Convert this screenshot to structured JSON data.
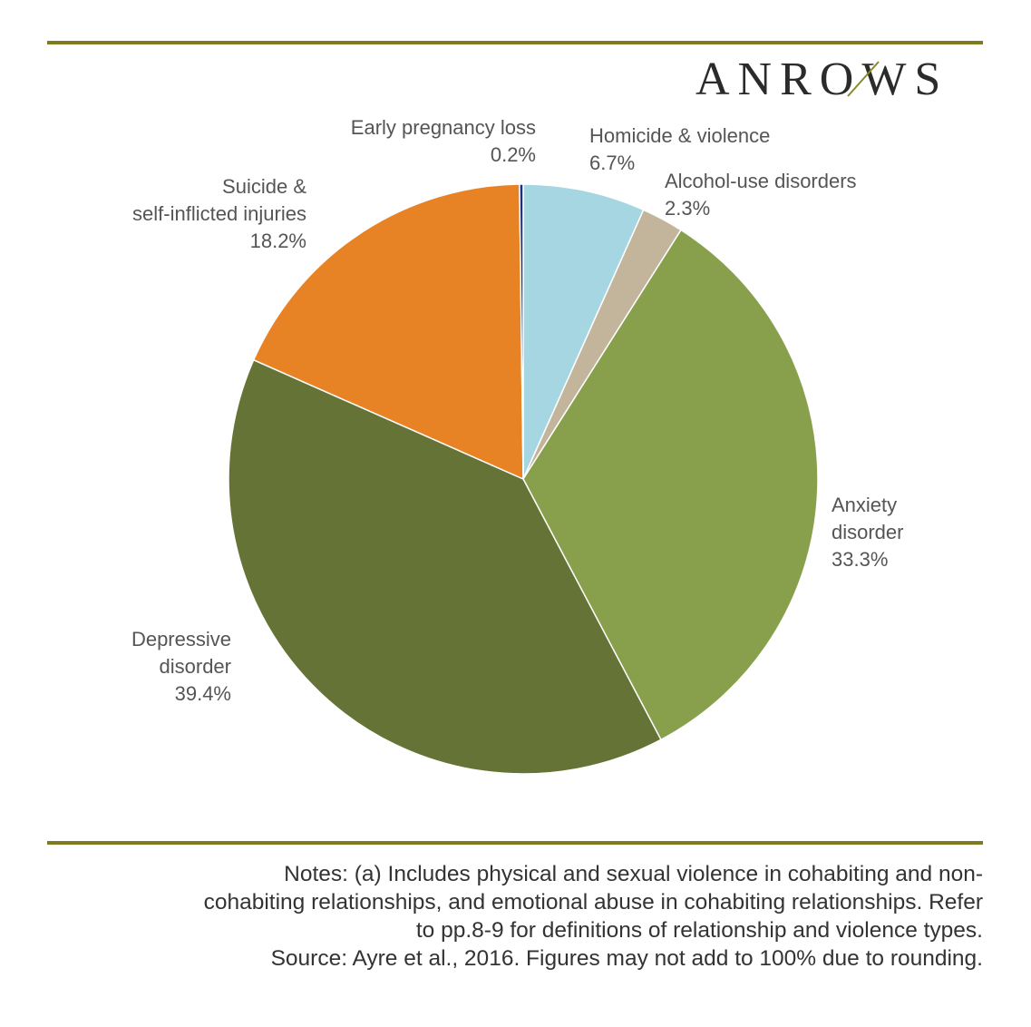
{
  "logo": {
    "text": "ANROWS",
    "accent_color": "#8a8a2a"
  },
  "colors": {
    "rule": "#7d7a1f"
  },
  "chart_data": {
    "type": "pie",
    "title": "",
    "slices": [
      {
        "label": "Homicide & violence",
        "label_lines": [
          "Homicide & violence"
        ],
        "value": 6.7,
        "value_text": "6.7%",
        "color": "#a6d6e2"
      },
      {
        "label": "Alcohol-use disorders",
        "label_lines": [
          "Alcohol-use disorders"
        ],
        "value": 2.3,
        "value_text": "2.3%",
        "color": "#c3b59c"
      },
      {
        "label": "Anxiety disorder",
        "label_lines": [
          "Anxiety",
          "disorder"
        ],
        "value": 33.3,
        "value_text": "33.3%",
        "color": "#88a04c"
      },
      {
        "label": "Depressive disorder",
        "label_lines": [
          "Depressive",
          "disorder"
        ],
        "value": 39.4,
        "value_text": "39.4%",
        "color": "#657436"
      },
      {
        "label": "Suicide & self-inflicted injuries",
        "label_lines": [
          "Suicide &",
          "self-inflicted injuries"
        ],
        "value": 18.2,
        "value_text": "18.2%",
        "color": "#e88325"
      },
      {
        "label": "Early pregnancy loss",
        "label_lines": [
          "Early pregnancy loss"
        ],
        "value": 0.2,
        "value_text": "0.2%",
        "color": "#1f2f7a"
      }
    ]
  },
  "notes": {
    "lines": [
      "Notes: (a) Includes physical and sexual violence in cohabiting and non-",
      "cohabiting relationships, and emotional abuse in cohabiting relationships. Refer",
      "to pp.8-9 for definitions of relationship and violence types.",
      "Source: Ayre et al., 2016. Figures may not add to 100% due to rounding."
    ]
  }
}
